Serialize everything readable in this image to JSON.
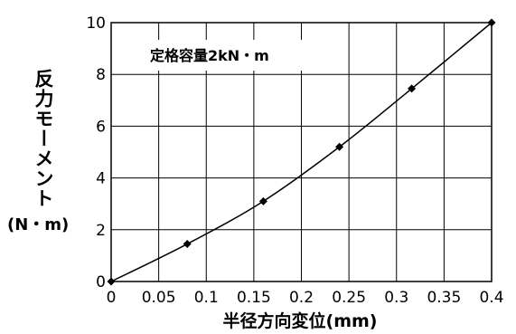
{
  "chart_data": {
    "type": "line",
    "title": "",
    "annotation": "定格容量2kN・m",
    "xlabel": "半径方向変位(mm)",
    "ylabel": "反力モーメント",
    "ylabel_unit": "(N・m)",
    "xlim": [
      0,
      0.4
    ],
    "ylim": [
      0,
      10
    ],
    "xticks": [
      0,
      0.05,
      0.1,
      0.15,
      0.2,
      0.25,
      0.3,
      0.35,
      0.4
    ],
    "xtick_labels": [
      "0",
      "0.05",
      "0.1",
      "0.15",
      "0.2",
      "0.25",
      "0.3",
      "0.35",
      "0.4"
    ],
    "yticks": [
      0,
      2,
      4,
      6,
      8,
      10
    ],
    "ytick_labels": [
      "0",
      "2",
      "4",
      "6",
      "8",
      "10"
    ],
    "grid": true,
    "marker": "diamond",
    "series": [
      {
        "x": [
          0,
          0.08,
          0.16,
          0.24,
          0.316,
          0.4
        ],
        "y": [
          0,
          1.45,
          3.1,
          5.2,
          7.45,
          10
        ]
      }
    ]
  }
}
